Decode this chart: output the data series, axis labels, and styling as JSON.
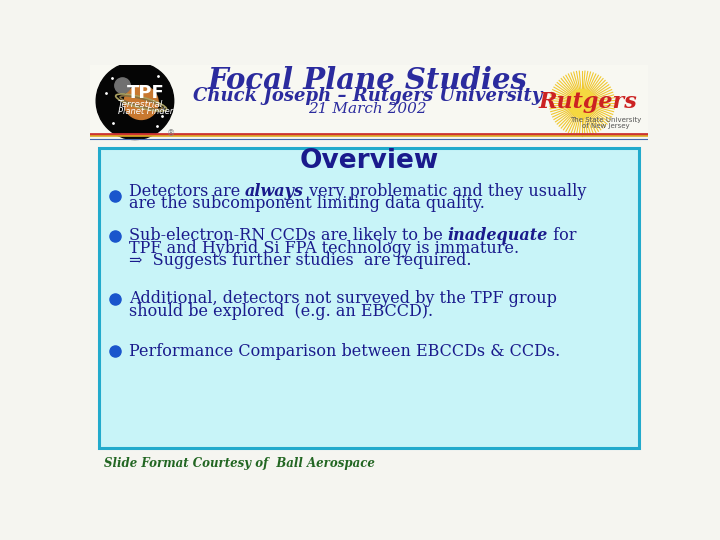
{
  "title": "Focal Plane Studies",
  "subtitle": "Chuck Joseph – Rutgers University",
  "date": "21 March 2002",
  "overview_title": "Overview",
  "footer": "Slide Format Courtesy of  Ball Aerospace",
  "bg_color": "#f5f5f0",
  "box_bg": "#c8f4f8",
  "box_border": "#22aacc",
  "title_color": "#2b2b9e",
  "subtitle_color": "#2b2b9e",
  "date_color": "#2b2b9e",
  "overview_color": "#1a1a8c",
  "bullet_color": "#1a1a8c",
  "bullet_dot_color": "#1a55cc",
  "footer_color": "#226622",
  "sep_line1": "#cc3333",
  "sep_line2": "#ddaa22",
  "sep_line3": "#4466aa"
}
